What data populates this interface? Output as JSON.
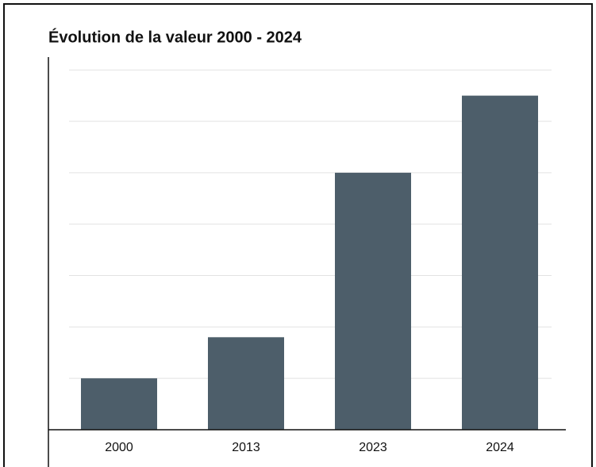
{
  "chart_data": {
    "type": "bar",
    "title": "Évolution de la valeur 2000 - 2024",
    "categories": [
      "2000",
      "2013",
      "2023",
      "2024"
    ],
    "values": [
      1,
      1.8,
      5,
      6.5
    ],
    "color": "#4d5e6a",
    "ylim": [
      0,
      7.25
    ],
    "yticks": [
      1,
      2,
      3,
      4,
      5,
      6,
      7
    ],
    "grid": true
  }
}
